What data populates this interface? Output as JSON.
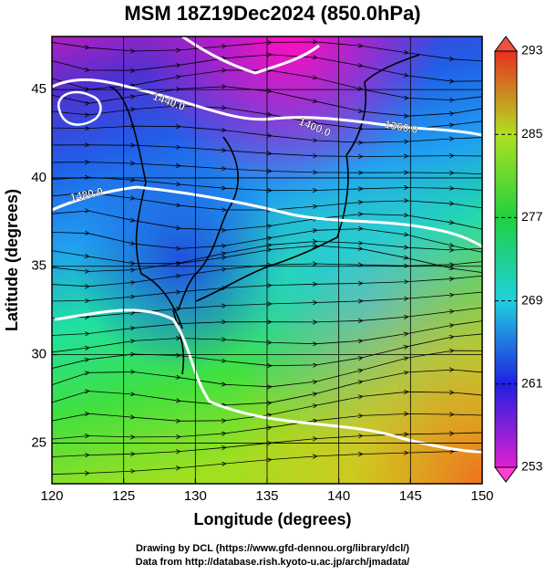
{
  "title": "MSM 18Z19Dec2024 (850.0hPa)",
  "x_axis": {
    "label": "Longitude (degrees)",
    "lim": [
      120,
      150
    ],
    "ticks": [
      120,
      125,
      130,
      135,
      140,
      145,
      150
    ]
  },
  "y_axis": {
    "label": "Latitude  (degrees)",
    "lim": [
      22.7,
      48
    ],
    "ticks": [
      25,
      30,
      35,
      40,
      45
    ]
  },
  "colorbar": {
    "lim": [
      253,
      293
    ],
    "ticks": [
      253,
      261,
      269,
      277,
      285,
      293
    ]
  },
  "contour_labels": [
    "1440.0",
    "1400.0",
    "1360.0",
    "1480.0"
  ],
  "footer": [
    "Drawing by DCL (https://www.gfd-dennou.org/library/dcl/)",
    "Data from http://database.rish.kyoto-u.ac.jp/arch/jmadata/"
  ]
}
